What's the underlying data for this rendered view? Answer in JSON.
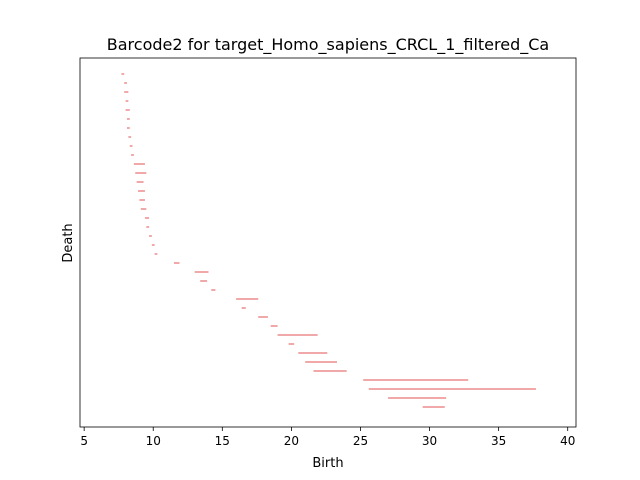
{
  "chart_data": {
    "type": "scatter",
    "title": "Barcode2 for target_Homo_sapiens_CRCL_1_filtered_Ca",
    "xlabel": "Birth",
    "ylabel": "Death",
    "xlim": [
      4.7,
      40.6
    ],
    "xticks": [
      5,
      10,
      15,
      20,
      25,
      30,
      35,
      40
    ],
    "xtick_labels": [
      "5",
      "10",
      "15",
      "20",
      "25",
      "30",
      "35",
      "40"
    ],
    "bar_color": "#e05050",
    "series": [
      {
        "bars": [
          {
            "birth": 7.7,
            "death": 7.9
          },
          {
            "birth": 7.9,
            "death": 8.1
          },
          {
            "birth": 7.9,
            "death": 8.2
          },
          {
            "birth": 8.0,
            "death": 8.2
          },
          {
            "birth": 8.0,
            "death": 8.3
          },
          {
            "birth": 8.1,
            "death": 8.3
          },
          {
            "birth": 8.1,
            "death": 8.3
          },
          {
            "birth": 8.2,
            "death": 8.4
          },
          {
            "birth": 8.3,
            "death": 8.5
          },
          {
            "birth": 8.4,
            "death": 8.6
          },
          {
            "birth": 8.6,
            "death": 9.4
          },
          {
            "birth": 8.7,
            "death": 9.5
          },
          {
            "birth": 8.8,
            "death": 9.3
          },
          {
            "birth": 8.9,
            "death": 9.4
          },
          {
            "birth": 9.0,
            "death": 9.4
          },
          {
            "birth": 9.1,
            "death": 9.5
          },
          {
            "birth": 9.4,
            "death": 9.7
          },
          {
            "birth": 9.5,
            "death": 9.7
          },
          {
            "birth": 9.7,
            "death": 9.9
          },
          {
            "birth": 9.9,
            "death": 10.1
          },
          {
            "birth": 10.1,
            "death": 10.3
          },
          {
            "birth": 11.5,
            "death": 11.9
          },
          {
            "birth": 13.0,
            "death": 14.0
          },
          {
            "birth": 13.4,
            "death": 13.9
          },
          {
            "birth": 14.2,
            "death": 14.5
          },
          {
            "birth": 16.0,
            "death": 17.6
          },
          {
            "birth": 16.4,
            "death": 16.7
          },
          {
            "birth": 17.6,
            "death": 18.3
          },
          {
            "birth": 18.5,
            "death": 19.0
          },
          {
            "birth": 19.0,
            "death": 21.9
          },
          {
            "birth": 19.8,
            "death": 20.2
          },
          {
            "birth": 20.5,
            "death": 22.6
          },
          {
            "birth": 21.0,
            "death": 23.3
          },
          {
            "birth": 21.6,
            "death": 24.0
          },
          {
            "birth": 25.2,
            "death": 32.8
          },
          {
            "birth": 25.6,
            "death": 37.7
          },
          {
            "birth": 27.0,
            "death": 31.2
          },
          {
            "birth": 29.5,
            "death": 31.1
          }
        ]
      }
    ]
  }
}
